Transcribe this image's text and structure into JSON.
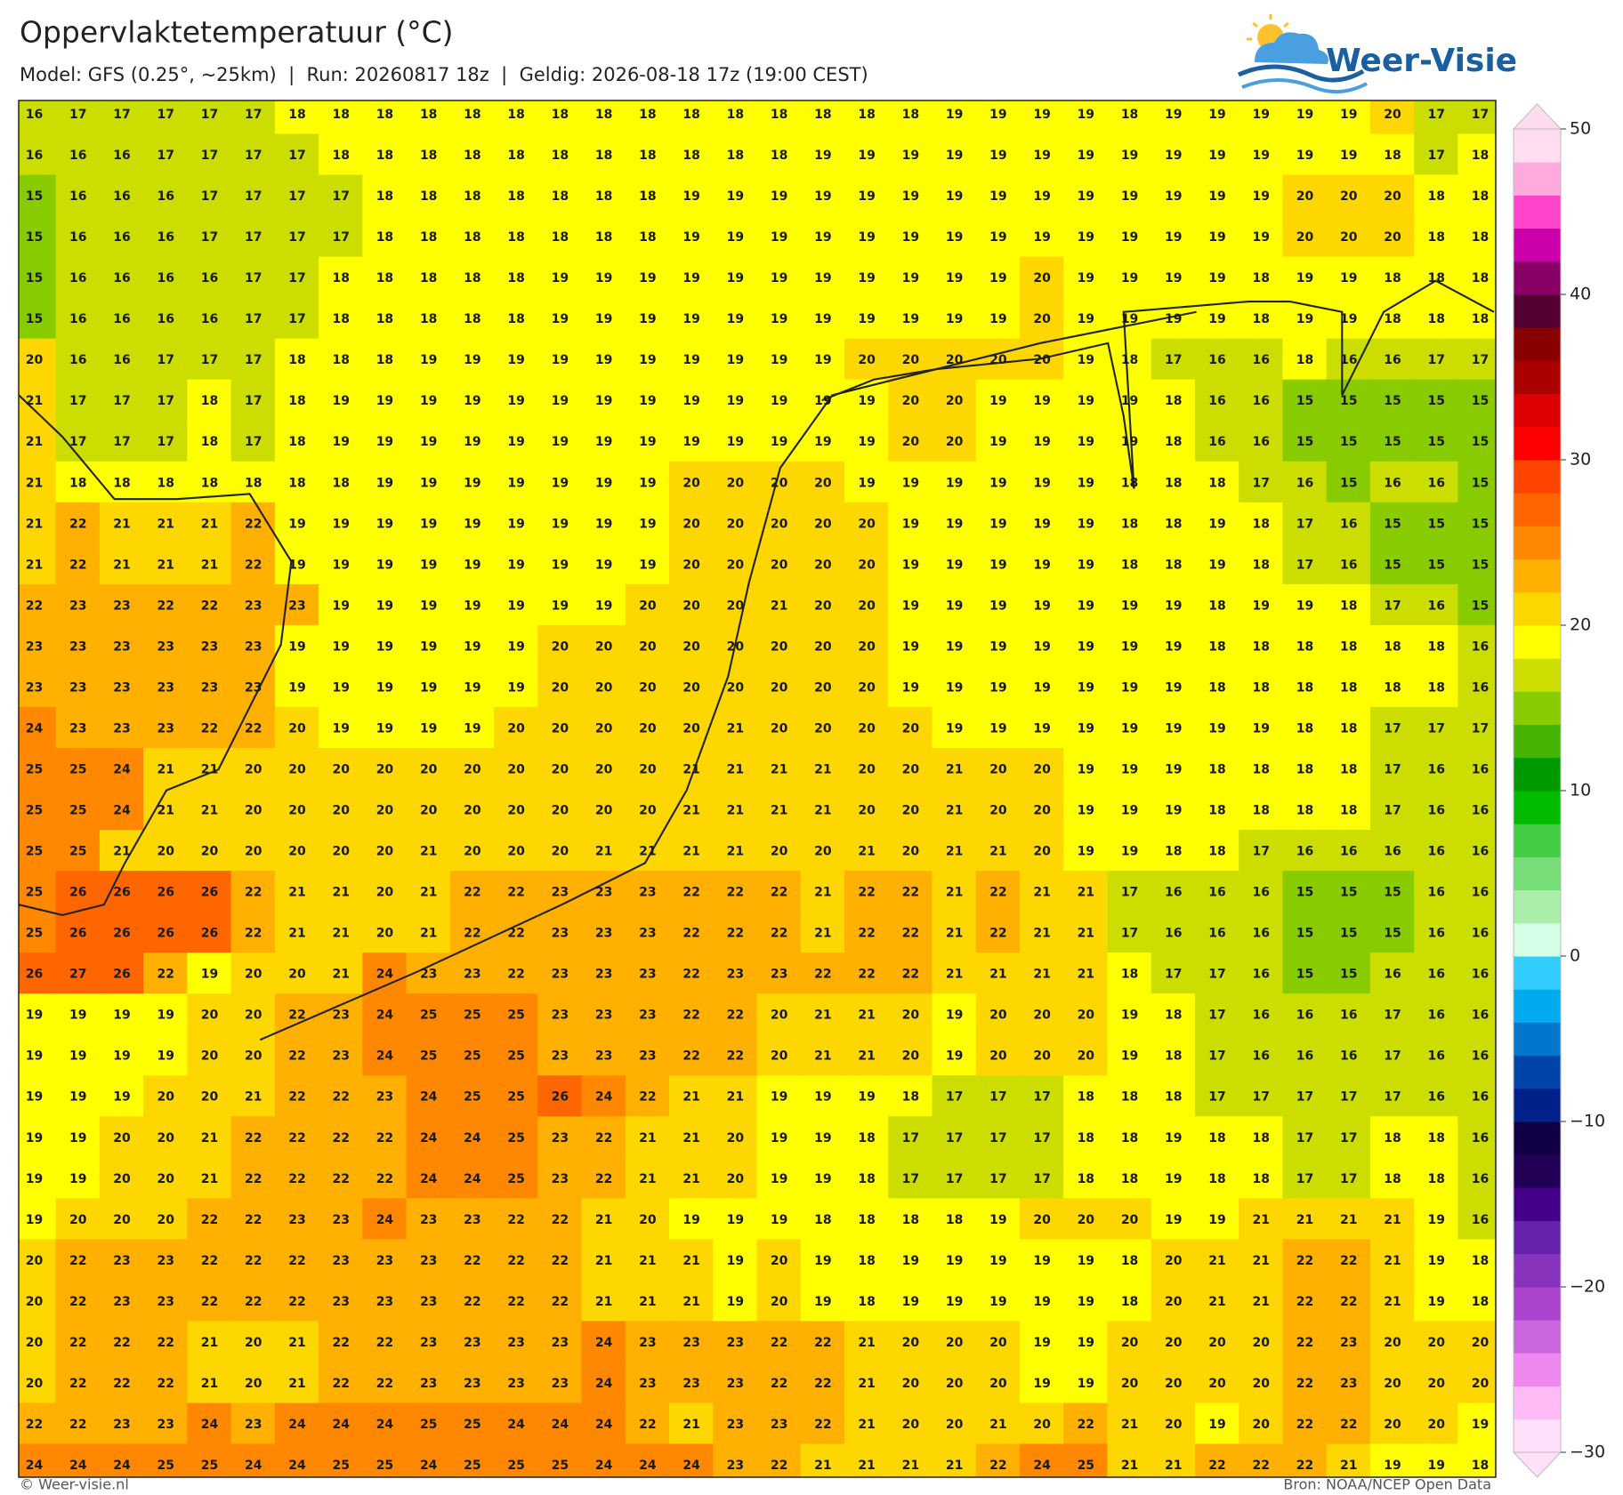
{
  "header": {
    "title": "Oppervlaktetemperatuur (°C)",
    "subtitle": "Model: GFS (0.25°, ~25km)  |  Run: 20260817 18z  |  Geldig: 2026-08-18 17z (19:00 CEST)"
  },
  "logo": {
    "text": "Weer-Visie"
  },
  "map": {
    "grid": [
      [
        16,
        17,
        17,
        17,
        17,
        17,
        18,
        18,
        18,
        18,
        18,
        18,
        18,
        18,
        18,
        18,
        18,
        18,
        18,
        18,
        18,
        19,
        19,
        19,
        19,
        18,
        19,
        19,
        19,
        19,
        19,
        20,
        17,
        17
      ],
      [
        16,
        16,
        16,
        17,
        17,
        17,
        17,
        18,
        18,
        18,
        18,
        18,
        18,
        18,
        18,
        18,
        18,
        18,
        19,
        19,
        19,
        19,
        19,
        19,
        19,
        19,
        19,
        19,
        19,
        19,
        19,
        18,
        17,
        18
      ],
      [
        15,
        16,
        16,
        16,
        17,
        17,
        17,
        17,
        18,
        18,
        18,
        18,
        18,
        18,
        18,
        19,
        19,
        19,
        19,
        19,
        19,
        19,
        19,
        19,
        19,
        19,
        19,
        19,
        19,
        20,
        20,
        20,
        18,
        18
      ],
      [
        15,
        16,
        16,
        16,
        17,
        17,
        17,
        17,
        18,
        18,
        18,
        18,
        18,
        18,
        18,
        19,
        19,
        19,
        19,
        19,
        19,
        19,
        19,
        19,
        19,
        19,
        19,
        19,
        19,
        20,
        20,
        20,
        18,
        18
      ],
      [
        15,
        16,
        16,
        16,
        16,
        17,
        17,
        18,
        18,
        18,
        18,
        18,
        19,
        19,
        19,
        19,
        19,
        19,
        19,
        19,
        19,
        19,
        19,
        20,
        19,
        19,
        19,
        19,
        18,
        19,
        19,
        18,
        18,
        18
      ],
      [
        15,
        16,
        16,
        16,
        16,
        17,
        17,
        18,
        18,
        18,
        18,
        18,
        19,
        19,
        19,
        19,
        19,
        19,
        19,
        19,
        19,
        19,
        19,
        20,
        19,
        19,
        19,
        19,
        18,
        19,
        19,
        18,
        18,
        18
      ],
      [
        20,
        16,
        16,
        17,
        17,
        17,
        18,
        18,
        18,
        19,
        19,
        19,
        19,
        19,
        19,
        19,
        19,
        19,
        19,
        20,
        20,
        20,
        20,
        20,
        19,
        18,
        17,
        16,
        16,
        18,
        16,
        16,
        17,
        17
      ],
      [
        21,
        17,
        17,
        17,
        18,
        17,
        18,
        19,
        19,
        19,
        19,
        19,
        19,
        19,
        19,
        19,
        19,
        19,
        19,
        19,
        20,
        20,
        19,
        19,
        19,
        19,
        18,
        16,
        16,
        15,
        15,
        15,
        15,
        15
      ],
      [
        21,
        17,
        17,
        17,
        18,
        17,
        18,
        19,
        19,
        19,
        19,
        19,
        19,
        19,
        19,
        19,
        19,
        19,
        19,
        19,
        20,
        20,
        19,
        19,
        19,
        19,
        18,
        16,
        16,
        15,
        15,
        15,
        15,
        15
      ],
      [
        21,
        18,
        18,
        18,
        18,
        18,
        18,
        18,
        19,
        19,
        19,
        19,
        19,
        19,
        19,
        20,
        20,
        20,
        20,
        19,
        19,
        19,
        19,
        19,
        19,
        18,
        18,
        18,
        17,
        16,
        15,
        16,
        16,
        15
      ],
      [
        21,
        22,
        21,
        21,
        21,
        22,
        19,
        19,
        19,
        19,
        19,
        19,
        19,
        19,
        19,
        20,
        20,
        20,
        20,
        20,
        19,
        19,
        19,
        19,
        19,
        18,
        18,
        19,
        18,
        17,
        16,
        15,
        15,
        15
      ],
      [
        21,
        22,
        21,
        21,
        21,
        22,
        19,
        19,
        19,
        19,
        19,
        19,
        19,
        19,
        19,
        20,
        20,
        20,
        20,
        20,
        19,
        19,
        19,
        19,
        19,
        18,
        18,
        19,
        18,
        17,
        16,
        15,
        15,
        15
      ],
      [
        22,
        23,
        23,
        22,
        22,
        23,
        23,
        19,
        19,
        19,
        19,
        19,
        19,
        19,
        20,
        20,
        20,
        21,
        20,
        20,
        19,
        19,
        19,
        19,
        19,
        19,
        19,
        18,
        19,
        19,
        18,
        17,
        16,
        15
      ],
      [
        23,
        23,
        23,
        23,
        23,
        23,
        19,
        19,
        19,
        19,
        19,
        19,
        20,
        20,
        20,
        20,
        20,
        20,
        20,
        20,
        19,
        19,
        19,
        19,
        19,
        19,
        19,
        18,
        18,
        18,
        18,
        18,
        18,
        16
      ],
      [
        23,
        23,
        23,
        23,
        23,
        23,
        19,
        19,
        19,
        19,
        19,
        19,
        20,
        20,
        20,
        20,
        20,
        20,
        20,
        20,
        19,
        19,
        19,
        19,
        19,
        19,
        19,
        18,
        18,
        18,
        18,
        18,
        18,
        16
      ],
      [
        24,
        23,
        23,
        23,
        22,
        22,
        20,
        19,
        19,
        19,
        19,
        20,
        20,
        20,
        20,
        20,
        21,
        20,
        20,
        20,
        20,
        19,
        19,
        19,
        19,
        19,
        19,
        19,
        19,
        18,
        18,
        17,
        17,
        17
      ],
      [
        25,
        25,
        24,
        21,
        21,
        20,
        20,
        20,
        20,
        20,
        20,
        20,
        20,
        20,
        20,
        21,
        21,
        21,
        21,
        20,
        20,
        21,
        20,
        20,
        19,
        19,
        19,
        18,
        18,
        18,
        18,
        17,
        16,
        16
      ],
      [
        25,
        25,
        24,
        21,
        21,
        20,
        20,
        20,
        20,
        20,
        20,
        20,
        20,
        20,
        20,
        21,
        21,
        21,
        21,
        20,
        20,
        21,
        20,
        20,
        19,
        19,
        19,
        18,
        18,
        18,
        18,
        17,
        16,
        16
      ],
      [
        25,
        25,
        21,
        20,
        20,
        20,
        20,
        20,
        20,
        21,
        20,
        20,
        20,
        21,
        21,
        21,
        21,
        20,
        20,
        21,
        20,
        21,
        21,
        20,
        19,
        19,
        18,
        18,
        17,
        16,
        16,
        16,
        16,
        16
      ],
      [
        25,
        26,
        26,
        26,
        26,
        22,
        21,
        21,
        20,
        21,
        22,
        22,
        23,
        23,
        23,
        22,
        22,
        22,
        21,
        22,
        22,
        21,
        22,
        21,
        21,
        17,
        16,
        16,
        16,
        15,
        15,
        15,
        16,
        16
      ],
      [
        25,
        26,
        26,
        26,
        26,
        22,
        21,
        21,
        20,
        21,
        22,
        22,
        23,
        23,
        23,
        22,
        22,
        22,
        21,
        22,
        22,
        21,
        22,
        21,
        21,
        17,
        16,
        16,
        16,
        15,
        15,
        15,
        16,
        16
      ],
      [
        26,
        27,
        26,
        22,
        19,
        20,
        20,
        21,
        24,
        23,
        23,
        22,
        23,
        23,
        23,
        22,
        23,
        23,
        22,
        22,
        22,
        21,
        21,
        21,
        21,
        18,
        17,
        17,
        16,
        15,
        15,
        16,
        16,
        16
      ],
      [
        19,
        19,
        19,
        19,
        20,
        20,
        22,
        23,
        24,
        25,
        25,
        25,
        23,
        23,
        23,
        22,
        22,
        20,
        21,
        21,
        20,
        19,
        20,
        20,
        20,
        19,
        18,
        17,
        16,
        16,
        16,
        17,
        16,
        16
      ],
      [
        19,
        19,
        19,
        19,
        20,
        20,
        22,
        23,
        24,
        25,
        25,
        25,
        23,
        23,
        23,
        22,
        22,
        20,
        21,
        21,
        20,
        19,
        20,
        20,
        20,
        19,
        18,
        17,
        16,
        16,
        16,
        17,
        16,
        16
      ],
      [
        19,
        19,
        19,
        20,
        20,
        21,
        22,
        22,
        23,
        24,
        25,
        25,
        26,
        24,
        22,
        21,
        21,
        19,
        19,
        19,
        18,
        17,
        17,
        17,
        18,
        18,
        18,
        17,
        17,
        17,
        17,
        17,
        16,
        16
      ],
      [
        19,
        19,
        20,
        20,
        21,
        22,
        22,
        22,
        22,
        24,
        24,
        25,
        23,
        22,
        21,
        21,
        20,
        19,
        19,
        18,
        17,
        17,
        17,
        17,
        18,
        18,
        19,
        18,
        18,
        17,
        17,
        18,
        18,
        16
      ],
      [
        19,
        19,
        20,
        20,
        21,
        22,
        22,
        22,
        22,
        24,
        24,
        25,
        23,
        22,
        21,
        21,
        20,
        19,
        19,
        18,
        17,
        17,
        17,
        17,
        18,
        18,
        19,
        18,
        18,
        17,
        17,
        18,
        18,
        16
      ],
      [
        19,
        20,
        20,
        20,
        22,
        22,
        23,
        23,
        24,
        23,
        23,
        22,
        22,
        21,
        20,
        19,
        19,
        19,
        18,
        18,
        18,
        18,
        19,
        20,
        20,
        20,
        19,
        19,
        21,
        21,
        21,
        21,
        19,
        16
      ],
      [
        20,
        22,
        23,
        23,
        22,
        22,
        22,
        23,
        23,
        23,
        22,
        22,
        22,
        21,
        21,
        21,
        19,
        20,
        19,
        18,
        19,
        19,
        19,
        19,
        19,
        18,
        20,
        21,
        21,
        22,
        22,
        21,
        19,
        18
      ],
      [
        20,
        22,
        23,
        23,
        22,
        22,
        22,
        23,
        23,
        23,
        22,
        22,
        22,
        21,
        21,
        21,
        19,
        20,
        19,
        18,
        19,
        19,
        19,
        19,
        19,
        18,
        20,
        21,
        21,
        22,
        22,
        21,
        19,
        18
      ],
      [
        20,
        22,
        22,
        22,
        21,
        20,
        21,
        22,
        22,
        23,
        23,
        23,
        23,
        24,
        23,
        23,
        23,
        22,
        22,
        21,
        20,
        20,
        20,
        19,
        19,
        20,
        20,
        20,
        20,
        22,
        23,
        20,
        20,
        20
      ],
      [
        20,
        22,
        22,
        22,
        21,
        20,
        21,
        22,
        22,
        23,
        23,
        23,
        23,
        24,
        23,
        23,
        23,
        22,
        22,
        21,
        20,
        20,
        20,
        19,
        19,
        20,
        20,
        20,
        20,
        22,
        23,
        20,
        20,
        20
      ],
      [
        22,
        22,
        23,
        23,
        24,
        23,
        24,
        24,
        24,
        25,
        25,
        24,
        24,
        24,
        22,
        21,
        23,
        23,
        22,
        21,
        20,
        20,
        21,
        20,
        22,
        21,
        20,
        19,
        20,
        22,
        22,
        20,
        20,
        19
      ],
      [
        24,
        24,
        24,
        25,
        25,
        24,
        24,
        25,
        25,
        24,
        25,
        25,
        25,
        24,
        24,
        24,
        23,
        22,
        21,
        21,
        21,
        21,
        22,
        24,
        25,
        21,
        21,
        22,
        22,
        22,
        21,
        19,
        19,
        18
      ]
    ]
  },
  "colorbar": {
    "lim": [
      -30,
      50
    ],
    "ticks": [
      {
        "value": -30,
        "label": "−30"
      },
      {
        "value": -20,
        "label": "−20"
      },
      {
        "value": -10,
        "label": "−10"
      },
      0,
      10,
      20,
      30,
      40,
      50
    ],
    "colors": [
      "#ffe0fa",
      "#ffbbf5",
      "#ee88ee",
      "#cc66dd",
      "#aa44cc",
      "#8833bb",
      "#6622aa",
      "#440088",
      "#220055",
      "#110044",
      "#002288",
      "#0044aa",
      "#0077cc",
      "#00aaee",
      "#33ccff",
      "#d4ffe6",
      "#aaeeaa",
      "#77dd77",
      "#44cc44",
      "#00bb00",
      "#009900",
      "#44b400",
      "#88cc00",
      "#ccdd00",
      "#ffff00",
      "#ffd700",
      "#ffb000",
      "#ff8800",
      "#ff6600",
      "#ff4400",
      "#ff0000",
      "#dd0000",
      "#aa0000",
      "#880000",
      "#550033",
      "#880066",
      "#cc00aa",
      "#ff44cc",
      "#ffaadd",
      "#ffddf0"
    ]
  },
  "footer": {
    "left": "© Weer-visie.nl",
    "right": "Bron: NOAA/NCEP Open Data"
  }
}
